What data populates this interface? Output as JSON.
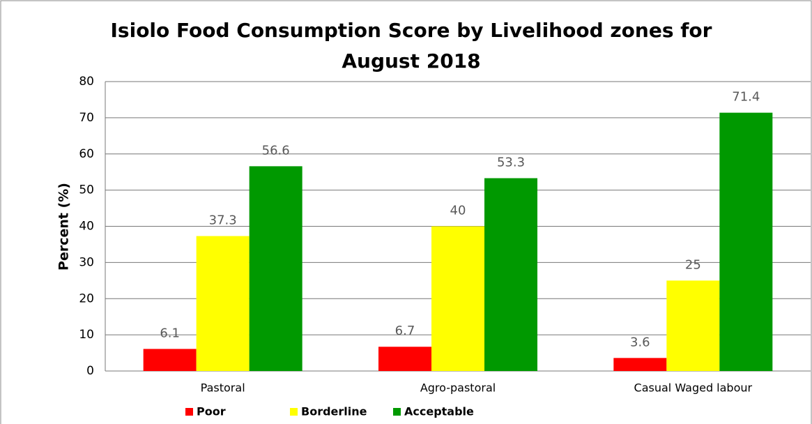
{
  "chart_data": {
    "type": "bar",
    "title": "Isiolo Food Consumption Score by Livelihood zones for August 2018",
    "y_label": "Percent (%)",
    "categories": [
      "Pastoral",
      "Agro-pastoral",
      "Casual Waged labour"
    ],
    "series": [
      {
        "name": "Poor",
        "color": "#ff0000",
        "values": [
          6.1,
          6.7,
          3.6
        ]
      },
      {
        "name": "Borderline",
        "color": "#ffff00",
        "values": [
          37.3,
          40,
          25
        ]
      },
      {
        "name": "Acceptable",
        "color": "#009900",
        "values": [
          56.6,
          53.3,
          71.4
        ]
      }
    ],
    "ylim": [
      0,
      80
    ],
    "yticks": [
      0,
      10,
      20,
      30,
      40,
      50,
      60,
      70,
      80
    ],
    "grid": true,
    "legend": "bottom"
  }
}
